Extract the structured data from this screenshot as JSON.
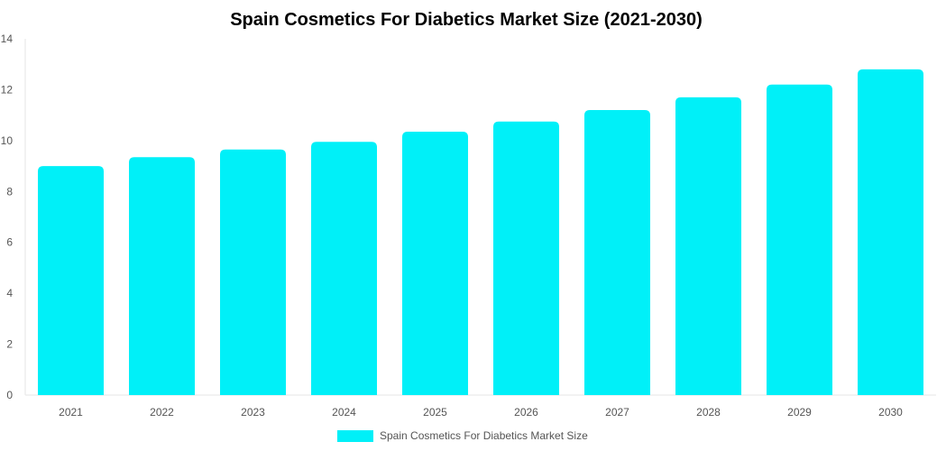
{
  "chart_data": {
    "type": "bar",
    "title": "Spain Cosmetics For Diabetics Market Size (2021-2030)",
    "xlabel": "",
    "ylabel": "",
    "categories": [
      "2021",
      "2022",
      "2023",
      "2024",
      "2025",
      "2026",
      "2027",
      "2028",
      "2029",
      "2030"
    ],
    "series": [
      {
        "name": "Spain Cosmetics For Diabetics Market Size",
        "values": [
          9.0,
          9.35,
          9.65,
          9.95,
          10.35,
          10.75,
          11.2,
          11.7,
          12.2,
          12.8
        ],
        "color": "#00f0f8"
      }
    ],
    "ylim": [
      0,
      14
    ],
    "yticks": [
      0,
      2,
      4,
      6,
      8,
      10,
      12,
      14
    ],
    "grid": false,
    "legend_position": "bottom"
  }
}
